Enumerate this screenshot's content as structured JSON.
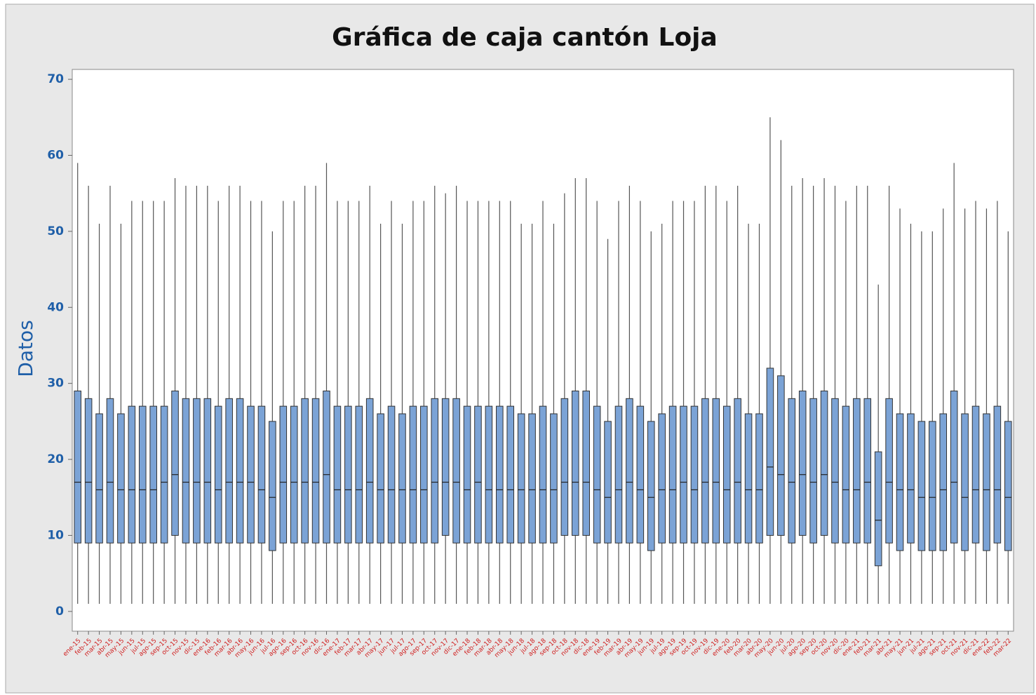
{
  "chart_data": {
    "type": "box",
    "title": "Gráfica de caja cantón Loja",
    "y_label": "Datos",
    "categories": [
      "ene-15",
      "feb-15",
      "mar-15",
      "abr-15",
      "may-15",
      "jun-15",
      "jul-15",
      "ago-15",
      "sep-15",
      "oct-15",
      "nov-15",
      "dic-15",
      "ene-16",
      "feb-16",
      "mar-16",
      "abr-16",
      "may-16",
      "jun-16",
      "jul-16",
      "ago-16",
      "sep-16",
      "oct-16",
      "nov-16",
      "dic-16",
      "ene-17",
      "feb-17",
      "mar-17",
      "abr-17",
      "may-17",
      "jun-17",
      "jul-17",
      "ago-17",
      "sep-17",
      "oct-17",
      "nov-17",
      "dic-17",
      "ene-18",
      "feb-18",
      "mar-18",
      "abr-18",
      "may-18",
      "jun-18",
      "jul-18",
      "ago-18",
      "sep-18",
      "oct-18",
      "nov-18",
      "dic-18",
      "ene-19",
      "feb-19",
      "mar-19",
      "abr-19",
      "may-19",
      "jun-19",
      "jul-19",
      "ago-19",
      "sep-19",
      "oct-19",
      "nov-19",
      "dic-19",
      "ene-20",
      "feb-20",
      "mar-20",
      "abr-20",
      "may-20",
      "jun-20",
      "jul-20",
      "ago-20",
      "sep-20",
      "oct-20",
      "nov-20",
      "dic-20",
      "ene-21",
      "feb-21",
      "mar-21",
      "abr-21",
      "may-21",
      "jun-21",
      "jul-21",
      "ago-21",
      "sep-21",
      "oct-21",
      "nov-21",
      "dic-21",
      "ene-22",
      "feb-22",
      "mar-22"
    ],
    "whislo": [
      1,
      1,
      1,
      1,
      1,
      1,
      1,
      1,
      1,
      1,
      1,
      1,
      1,
      1,
      1,
      1,
      1,
      1,
      1,
      1,
      1,
      1,
      1,
      1,
      1,
      1,
      1,
      1,
      1,
      1,
      1,
      1,
      1,
      1,
      1,
      1,
      1,
      1,
      1,
      1,
      1,
      1,
      1,
      1,
      1,
      1,
      1,
      1,
      1,
      1,
      1,
      1,
      1,
      1,
      1,
      1,
      1,
      1,
      1,
      1,
      1,
      1,
      1,
      1,
      1,
      1,
      1,
      1,
      1,
      1,
      1,
      1,
      1,
      1,
      1,
      1,
      1,
      1,
      1,
      1,
      1,
      1,
      1,
      1,
      1,
      1,
      1
    ],
    "q1": [
      9,
      9,
      9,
      9,
      9,
      9,
      9,
      9,
      9,
      10,
      9,
      9,
      9,
      9,
      9,
      9,
      9,
      9,
      8,
      9,
      9,
      9,
      9,
      9,
      9,
      9,
      9,
      9,
      9,
      9,
      9,
      9,
      9,
      9,
      10,
      9,
      9,
      9,
      9,
      9,
      9,
      9,
      9,
      9,
      9,
      10,
      10,
      10,
      9,
      9,
      9,
      9,
      9,
      8,
      9,
      9,
      9,
      9,
      9,
      9,
      9,
      9,
      9,
      9,
      10,
      10,
      9,
      10,
      9,
      10,
      9,
      9,
      9,
      9,
      6,
      9,
      8,
      9,
      8,
      8,
      8,
      9,
      8,
      9,
      8,
      9,
      8
    ],
    "median": [
      17,
      17,
      16,
      17,
      16,
      16,
      16,
      16,
      17,
      18,
      17,
      17,
      17,
      16,
      17,
      17,
      17,
      16,
      15,
      17,
      17,
      17,
      17,
      18,
      16,
      16,
      16,
      17,
      16,
      16,
      16,
      16,
      16,
      17,
      17,
      17,
      16,
      17,
      16,
      16,
      16,
      16,
      16,
      16,
      16,
      17,
      17,
      17,
      16,
      15,
      16,
      17,
      16,
      15,
      16,
      16,
      17,
      16,
      17,
      17,
      16,
      17,
      16,
      16,
      19,
      18,
      17,
      18,
      17,
      18,
      17,
      16,
      16,
      17,
      12,
      17,
      16,
      16,
      15,
      15,
      16,
      17,
      15,
      16,
      16,
      16,
      15
    ],
    "q3": [
      29,
      28,
      26,
      28,
      26,
      27,
      27,
      27,
      27,
      29,
      28,
      28,
      28,
      27,
      28,
      28,
      27,
      27,
      25,
      27,
      27,
      28,
      28,
      29,
      27,
      27,
      27,
      28,
      26,
      27,
      26,
      27,
      27,
      28,
      28,
      28,
      27,
      27,
      27,
      27,
      27,
      26,
      26,
      27,
      26,
      28,
      29,
      29,
      27,
      25,
      27,
      28,
      27,
      25,
      26,
      27,
      27,
      27,
      28,
      28,
      27,
      28,
      26,
      26,
      32,
      31,
      28,
      29,
      28,
      29,
      28,
      27,
      28,
      28,
      21,
      28,
      26,
      26,
      25,
      25,
      26,
      29,
      26,
      27,
      26,
      27,
      25
    ],
    "whishi": [
      59,
      56,
      51,
      56,
      51,
      54,
      54,
      54,
      54,
      57,
      56,
      56,
      56,
      54,
      56,
      56,
      54,
      54,
      50,
      54,
      54,
      56,
      56,
      59,
      54,
      54,
      54,
      56,
      51,
      54,
      51,
      54,
      54,
      56,
      55,
      56,
      54,
      54,
      54,
      54,
      54,
      51,
      51,
      54,
      51,
      55,
      57,
      57,
      54,
      49,
      54,
      56,
      54,
      50,
      51,
      54,
      54,
      54,
      56,
      56,
      54,
      56,
      51,
      51,
      65,
      62,
      56,
      57,
      56,
      57,
      56,
      54,
      56,
      56,
      43,
      56,
      53,
      51,
      50,
      50,
      53,
      59,
      53,
      54,
      53,
      54,
      50
    ],
    "color": "#7ba3d6",
    "ylim": [
      -2.6,
      71.3
    ],
    "yticks": [
      0,
      10,
      20,
      30,
      40,
      50,
      60,
      70
    ]
  }
}
